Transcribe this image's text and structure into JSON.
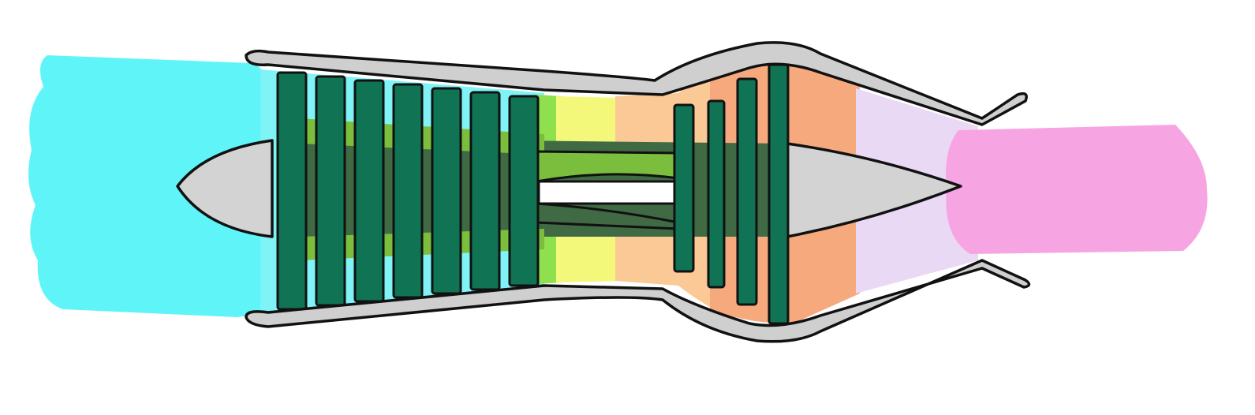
{
  "diagram": {
    "labels": [],
    "colors": {
      "intake_air": "#5ff5f8",
      "compressor_zone": "#7ff3f5",
      "blade_dark": "#0f7354",
      "blade_mid": "#7bbf3e",
      "shaft_dark": "#3f6a44",
      "shaft_light": "#7bbd3d",
      "casing": "#cfcfcf",
      "spinner": "#d3d3d3",
      "combustor_green": "#8ee04e",
      "combustor_yellow": "#f4f87a",
      "combustor_peach": "#fbc996",
      "turbine_orange": "#f6a97c",
      "nozzle_lavender": "#ead9f5",
      "exhaust_pink": "#f7a5e2",
      "outline": "#111111"
    },
    "compressor_stages": 7,
    "turbine_stages": 4
  }
}
